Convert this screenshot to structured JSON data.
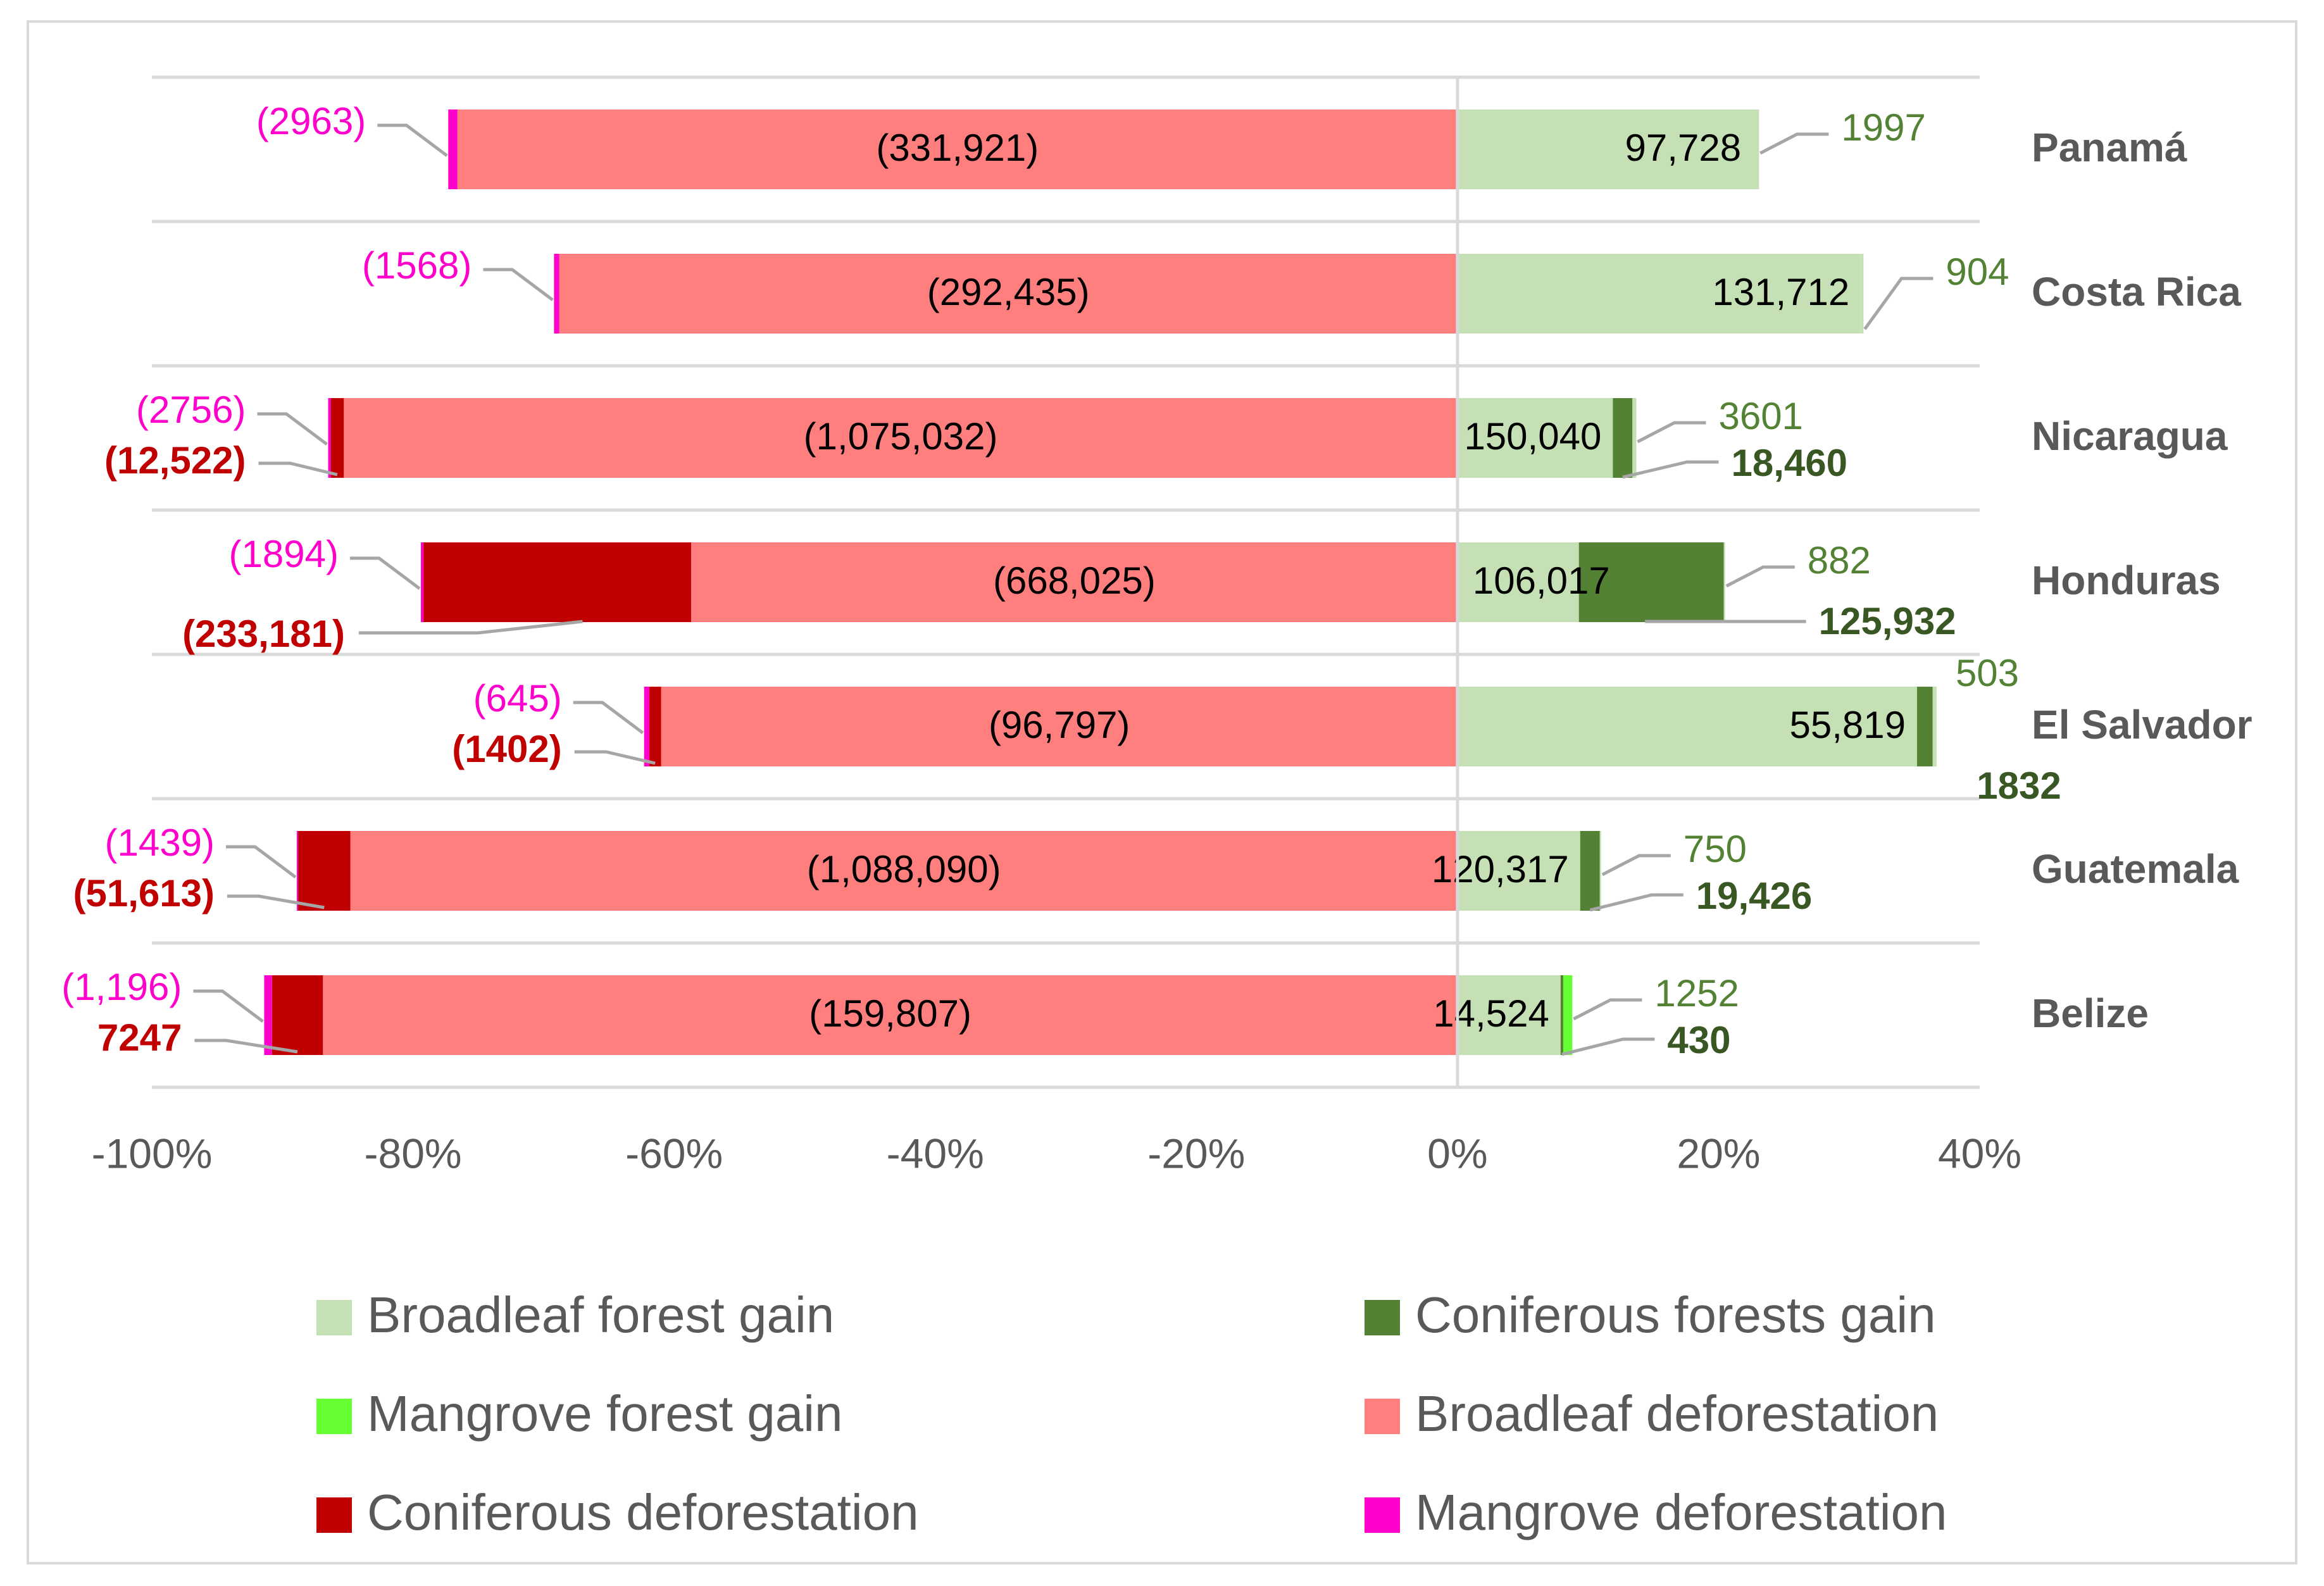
{
  "chart_data": {
    "type": "bar",
    "orientation": "horizontal",
    "stacked": true,
    "normalized": "percent",
    "categories": [
      "Panamá",
      "Costa Rica",
      "Nicaragua",
      "Honduras",
      "El Salvador",
      "Guatemala",
      "Belize"
    ],
    "x_ticks": [
      -100,
      -80,
      -60,
      -40,
      -20,
      0,
      20,
      40
    ],
    "x_tick_labels": [
      "-100%",
      "-80%",
      "-60%",
      "-40%",
      "-20%",
      "0%",
      "20%",
      "40%"
    ],
    "xlim": [
      -100,
      40
    ],
    "grid": "horizontal-category-separators",
    "legend_position": "bottom",
    "colors": {
      "broadleaf_gain": "#c5e0b4",
      "coniferous_gain": "#548235",
      "mangrove_gain": "#66ff33",
      "broadleaf_def": "#ff7f7f",
      "coniferous_def": "#c00000",
      "mangrove_def": "#ff00cc",
      "gain_label": "#548235",
      "coniferous_gain_label": "#385723",
      "mangrove_def_label": "#ff00cc",
      "coniferous_def_label": "#c00000",
      "axis_text": "#595959"
    },
    "legend": [
      {
        "key": "broadleaf_gain",
        "label": "Broadleaf forest gain"
      },
      {
        "key": "coniferous_gain",
        "label": "Coniferous forests gain"
      },
      {
        "key": "mangrove_gain",
        "label": "Mangrove forest gain"
      },
      {
        "key": "broadleaf_def",
        "label": "Broadleaf deforestation"
      },
      {
        "key": "coniferous_def",
        "label": "Coniferous deforestation"
      },
      {
        "key": "mangrove_def",
        "label": "Mangrove deforestation"
      }
    ],
    "rows": [
      {
        "country": "Panamá",
        "percent": {
          "broadleaf_def": -76.6,
          "coniferous_def": 0,
          "mangrove_def": -0.7,
          "broadleaf_gain": 22.6,
          "coniferous_gain": 0,
          "mangrove_gain": 0.5
        },
        "labels": {
          "broadleaf_def": "(331,921)",
          "mangrove_def": "(2963)",
          "broadleaf_gain": "97,728",
          "mangrove_gain": "1997"
        }
      },
      {
        "country": "Costa Rica",
        "percent": {
          "broadleaf_def": -68.8,
          "coniferous_def": 0,
          "mangrove_def": -0.4,
          "broadleaf_gain": 30.9,
          "coniferous_gain": 0,
          "mangrove_gain": 0.2
        },
        "labels": {
          "broadleaf_def": "(292,435)",
          "mangrove_def": "(1568)",
          "broadleaf_gain": "131,712",
          "mangrove_gain": "904"
        }
      },
      {
        "country": "Nicaragua",
        "percent": {
          "broadleaf_def": -85.3,
          "coniferous_def": -1.0,
          "mangrove_def": -0.2,
          "broadleaf_gain": 11.9,
          "coniferous_gain": 1.5,
          "mangrove_gain": 0.3
        },
        "labels": {
          "broadleaf_def": "(1,075,032)",
          "coniferous_def": "(12,522)",
          "mangrove_def": "(2756)",
          "broadleaf_gain": "150,040",
          "coniferous_gain": "18,460",
          "mangrove_gain": "3601"
        }
      },
      {
        "country": "Honduras",
        "percent": {
          "broadleaf_def": -58.7,
          "coniferous_def": -20.5,
          "mangrove_def": -0.2,
          "broadleaf_gain": 9.3,
          "coniferous_gain": 11.1,
          "mangrove_gain": 0.1
        },
        "labels": {
          "broadleaf_def": "(668,025)",
          "coniferous_def": "(233,181)",
          "mangrove_def": "(1894)",
          "broadleaf_gain": "106,017",
          "coniferous_gain": "125,932",
          "mangrove_gain": "882"
        }
      },
      {
        "country": "El Salvador",
        "percent": {
          "broadleaf_def": -61.0,
          "coniferous_def": -0.9,
          "mangrove_def": -0.4,
          "broadleaf_gain": 35.2,
          "coniferous_gain": 1.2,
          "mangrove_gain": 0.3
        },
        "labels": {
          "broadleaf_def": "(96,797)",
          "coniferous_def": "(1402)",
          "mangrove_def": "(645)",
          "broadleaf_gain": "55,819",
          "coniferous_gain": "1832",
          "mangrove_gain": "503"
        }
      },
      {
        "country": "Guatemala",
        "percent": {
          "broadleaf_def": -84.8,
          "coniferous_def": -4.0,
          "mangrove_def": -0.1,
          "broadleaf_gain": 9.4,
          "coniferous_gain": 1.5,
          "mangrove_gain": 0.1
        },
        "labels": {
          "broadleaf_def": "(1,088,090)",
          "coniferous_def": "(51,613)",
          "mangrove_def": "(1439)",
          "broadleaf_gain": "120,317",
          "coniferous_gain": "19,426",
          "mangrove_gain": "750"
        }
      },
      {
        "country": "Belize",
        "percent": {
          "broadleaf_def": -86.9,
          "coniferous_def": -3.9,
          "mangrove_def": -0.6,
          "broadleaf_gain": 7.9,
          "coniferous_gain": 0.2,
          "mangrove_gain": 0.7
        },
        "labels": {
          "broadleaf_def": "(159,807)",
          "coniferous_def": "7247",
          "mangrove_def": "(1,196)",
          "broadleaf_gain": "14,524",
          "coniferous_gain": "430",
          "mangrove_gain": "1252"
        }
      }
    ]
  }
}
